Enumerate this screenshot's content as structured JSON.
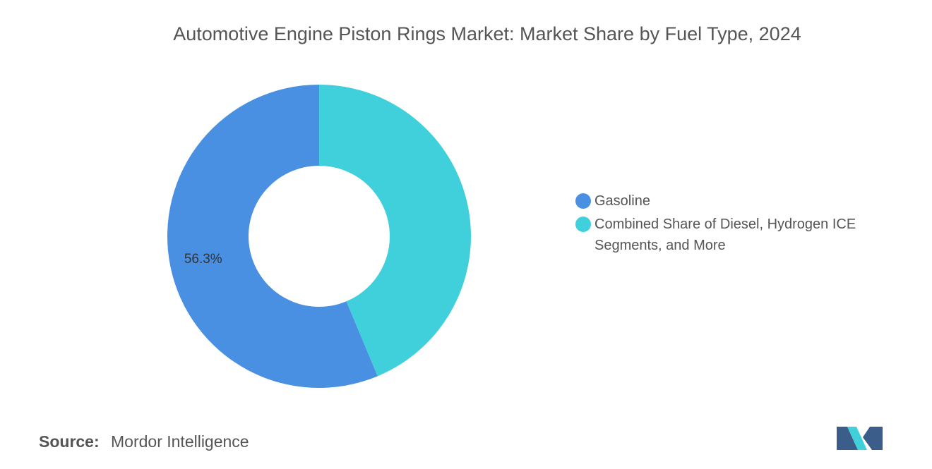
{
  "chart_data": {
    "type": "donut",
    "title": "Automotive Engine Piston Rings Market: Market Share by Fuel Type, 2024",
    "categories": [
      "Gasoline",
      "Combined Share of Diesel, Hydrogen ICE Segments, and More"
    ],
    "values": [
      56.3,
      43.7
    ],
    "value_labels": [
      "56.3%",
      null
    ],
    "colors": [
      "#4a90e2",
      "#40d0dc"
    ]
  },
  "footer": {
    "source_label": "Source:",
    "source": "Mordor Intelligence"
  }
}
